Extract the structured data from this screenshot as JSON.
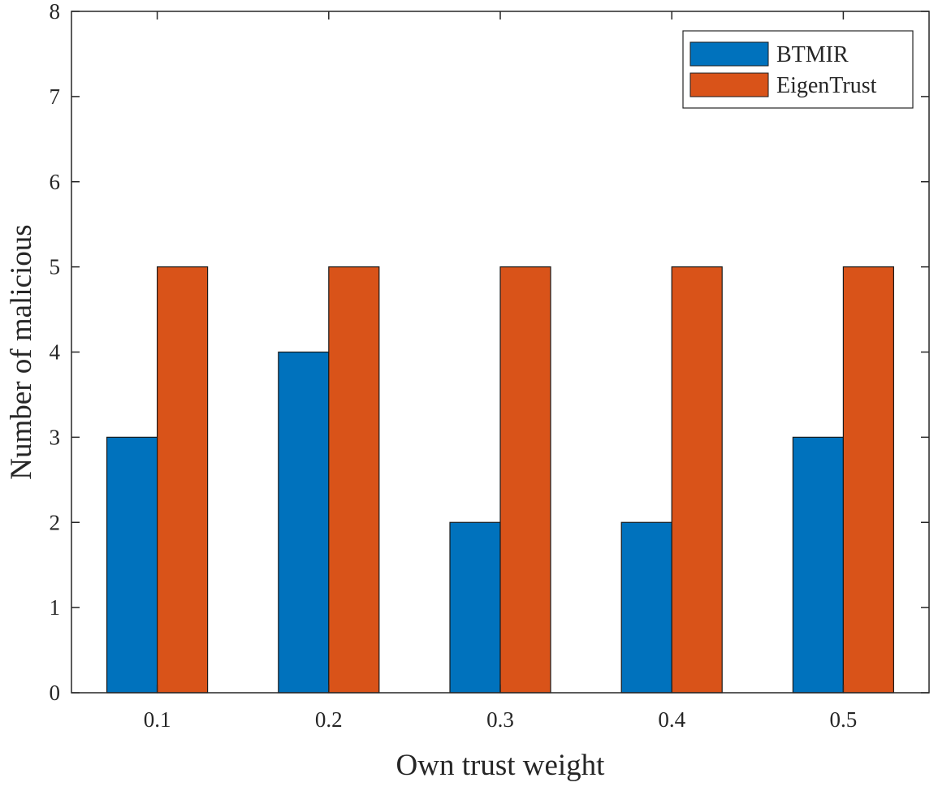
{
  "chart_data": {
    "type": "bar",
    "title": "",
    "xlabel": "Own trust weight",
    "ylabel": "Number of malicious",
    "categories": [
      "0.1",
      "0.2",
      "0.3",
      "0.4",
      "0.5"
    ],
    "series": [
      {
        "name": "BTMIR",
        "color": "#0072BD",
        "values": [
          3,
          4,
          2,
          2,
          3
        ]
      },
      {
        "name": "EigenTrust",
        "color": "#D95319",
        "values": [
          5,
          5,
          5,
          5,
          5
        ]
      }
    ],
    "ylim": [
      0,
      8
    ],
    "yticks": [
      "0",
      "1",
      "2",
      "3",
      "4",
      "5",
      "6",
      "7",
      "8"
    ],
    "grid": false,
    "legend_position": "top-right"
  }
}
